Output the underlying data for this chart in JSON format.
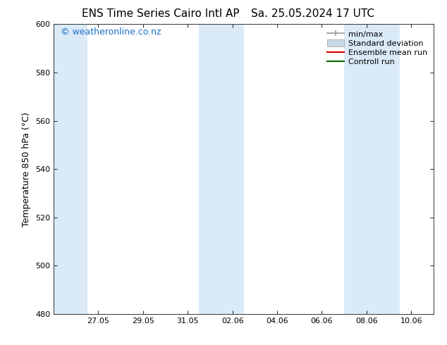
{
  "title_left": "ENS Time Series Cairo Intl AP",
  "title_right": "Sa. 25.05.2024 17 UTC",
  "ylabel": "Temperature 850 hPa (°C)",
  "ylim": [
    480,
    600
  ],
  "yticks": [
    480,
    500,
    520,
    540,
    560,
    580,
    600
  ],
  "xtick_labels": [
    "27.05",
    "29.05",
    "31.05",
    "02.06",
    "04.06",
    "06.06",
    "08.06",
    "10.06"
  ],
  "xtick_offsets": [
    2,
    4,
    6,
    8,
    10,
    12,
    14,
    16
  ],
  "xlim": [
    0,
    17
  ],
  "shaded_bands": [
    {
      "x_start": 0,
      "x_end": 1.5
    },
    {
      "x_start": 6.5,
      "x_end": 8.5
    },
    {
      "x_start": 13.0,
      "x_end": 15.5
    }
  ],
  "band_color": "#daeaf7",
  "background_color": "#ffffff",
  "watermark_text": "© weatheronline.co.nz",
  "watermark_color": "#1a6fc4",
  "legend_labels": [
    "min/max",
    "Standard deviation",
    "Ensemble mean run",
    "Controll run"
  ],
  "legend_colors_line": [
    "#999999",
    "#bbccdd",
    "#dd0000",
    "#006600"
  ],
  "font_size_title": 11,
  "font_size_axis": 9,
  "font_size_ticks": 8,
  "font_size_watermark": 9,
  "font_size_legend": 8,
  "tick_color": "#333333",
  "spine_color": "#333333"
}
